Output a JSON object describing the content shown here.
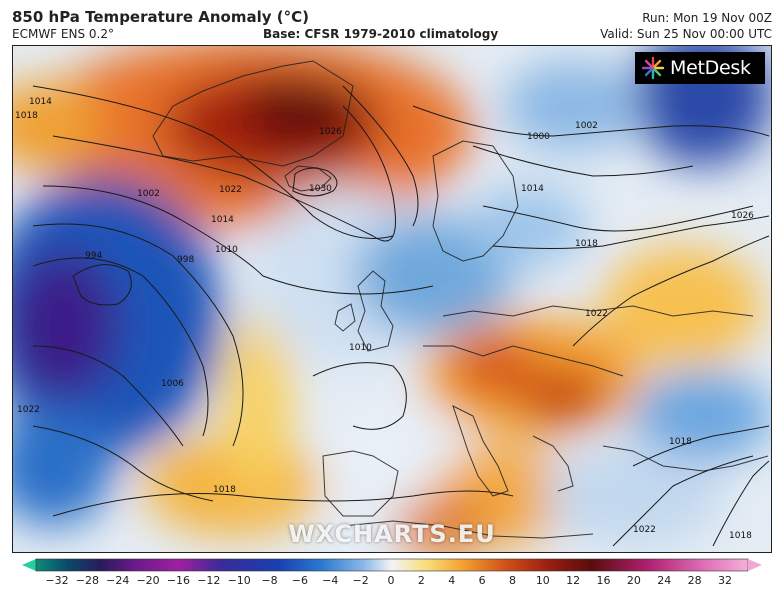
{
  "header": {
    "title": "850 hPa Temperature Anomaly (°C)",
    "model": "ECMWF ENS 0.2°",
    "base": "Base: CFSR 1979-2010 climatology",
    "run": "Run: Mon 19 Nov 00Z",
    "valid": "Valid: Sun 25 Nov 00:00 UTC"
  },
  "logo": {
    "text": "MetDesk"
  },
  "watermark": "WXCHARTS.EU",
  "isobar_labels": [
    "1014",
    "1018",
    "1026",
    "1030",
    "1022",
    "1002",
    "1014",
    "1010",
    "998",
    "994",
    "1006",
    "1022",
    "1018",
    "1000",
    "1002",
    "1014",
    "1018",
    "1026",
    "1022",
    "1018",
    "1018",
    "1022",
    "1010"
  ],
  "colorbar": {
    "ticks": [
      "−32",
      "−28",
      "−24",
      "−20",
      "−16",
      "−12",
      "−10",
      "−8",
      "−6",
      "−4",
      "−2",
      "0",
      "2",
      "4",
      "6",
      "8",
      "10",
      "12",
      "16",
      "20",
      "24",
      "28",
      "32"
    ],
    "colors": {
      "min_arrow": "#20d0a0",
      "max_arrow": "#f0a8d8"
    }
  }
}
